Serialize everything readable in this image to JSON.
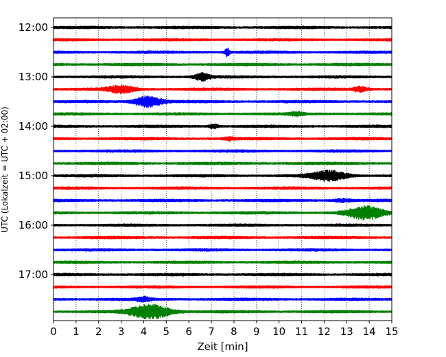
{
  "chart_data": {
    "type": "line",
    "title": "",
    "xlabel": "Zeit  [min]",
    "ylabel": "UTC (Lokalzeit = UTC + 02:00)",
    "xlim": [
      0,
      15
    ],
    "x_ticks": [
      "0",
      "1",
      "2",
      "3",
      "4",
      "5",
      "6",
      "7",
      "8",
      "9",
      "10",
      "11",
      "12",
      "13",
      "14",
      "15"
    ],
    "y_tick_labels": [
      "12:00",
      "13:00",
      "14:00",
      "15:00",
      "16:00",
      "17:00"
    ],
    "grid": "vertical dotted at each minute",
    "trace_colors": [
      "#000000",
      "#ff0000",
      "#0000ff",
      "#008000"
    ],
    "traces": [
      {
        "start": "12:00",
        "events": []
      },
      {
        "start": "12:15",
        "events": []
      },
      {
        "start": "12:30",
        "events": [
          {
            "t": 7.7,
            "amp": 7,
            "width": 0.1
          }
        ]
      },
      {
        "start": "12:45",
        "events": []
      },
      {
        "start": "13:00",
        "events": [
          {
            "t": 6.6,
            "amp": 5,
            "width": 0.35
          }
        ]
      },
      {
        "start": "13:15",
        "events": [
          {
            "t": 3.0,
            "amp": 5,
            "width": 0.6
          },
          {
            "t": 13.6,
            "amp": 3.5,
            "width": 0.35
          }
        ]
      },
      {
        "start": "13:30",
        "events": [
          {
            "t": 4.2,
            "amp": 8,
            "width": 0.6
          }
        ]
      },
      {
        "start": "13:45",
        "events": [
          {
            "t": 10.8,
            "amp": 2,
            "width": 0.3
          }
        ]
      },
      {
        "start": "14:00",
        "events": [
          {
            "t": 7.1,
            "amp": 3,
            "width": 0.2
          }
        ]
      },
      {
        "start": "14:15",
        "events": [
          {
            "t": 7.8,
            "amp": 2,
            "width": 0.2
          }
        ]
      },
      {
        "start": "14:30",
        "events": []
      },
      {
        "start": "14:45",
        "events": []
      },
      {
        "start": "15:00",
        "events": [
          {
            "t": 12.2,
            "amp": 7,
            "width": 0.8
          }
        ]
      },
      {
        "start": "15:15",
        "events": []
      },
      {
        "start": "15:30",
        "events": [
          {
            "t": 12.8,
            "amp": 2,
            "width": 0.4
          }
        ]
      },
      {
        "start": "15:45",
        "events": [
          {
            "t": 13.8,
            "amp": 9,
            "width": 0.8
          }
        ]
      },
      {
        "start": "16:00",
        "events": []
      },
      {
        "start": "16:15",
        "events": []
      },
      {
        "start": "16:30",
        "events": []
      },
      {
        "start": "16:45",
        "events": []
      },
      {
        "start": "17:00",
        "events": []
      },
      {
        "start": "17:15",
        "events": []
      },
      {
        "start": "17:30",
        "events": [
          {
            "t": 4.0,
            "amp": 3,
            "width": 0.3
          }
        ]
      },
      {
        "start": "17:45",
        "events": [
          {
            "t": 4.3,
            "amp": 10,
            "width": 0.9
          }
        ]
      }
    ]
  }
}
